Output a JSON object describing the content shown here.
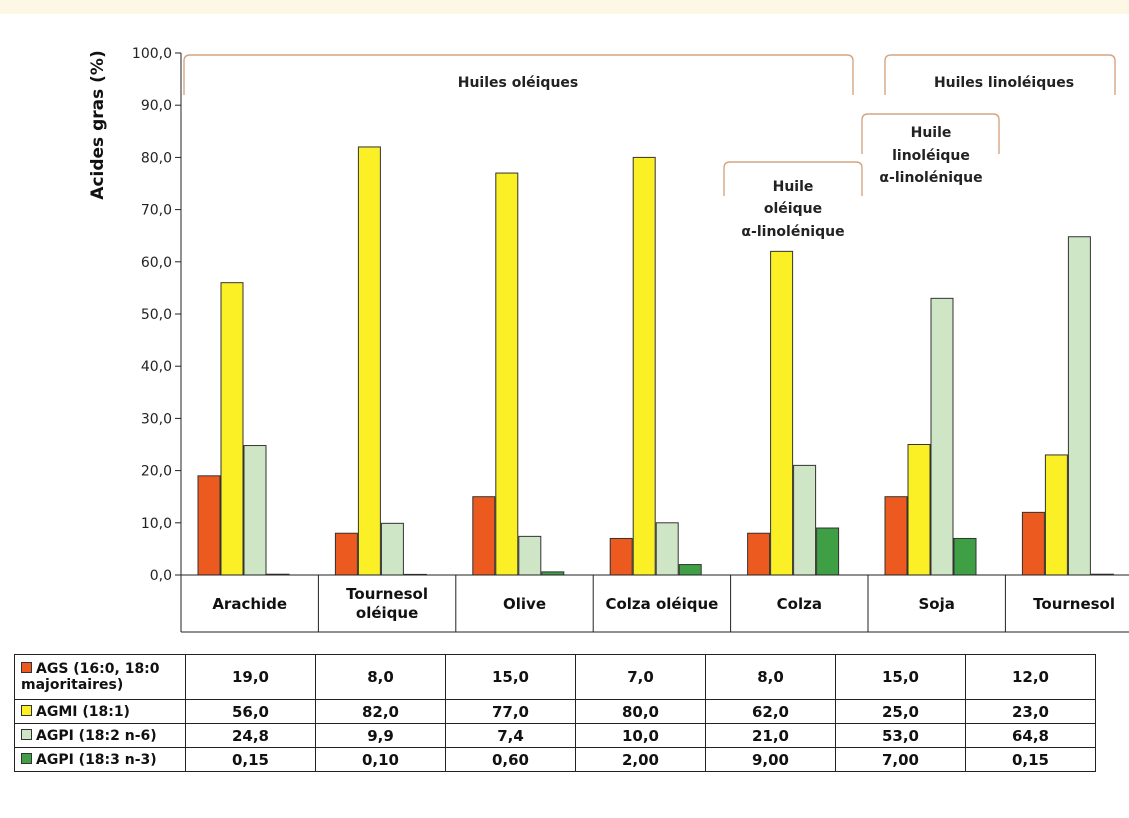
{
  "chart_data": {
    "type": "bar",
    "ylabel": "Acides gras (%)",
    "ylim": [
      0,
      100
    ],
    "yticks": [
      "0,0",
      "10,0",
      "20,0",
      "30,0",
      "40,0",
      "50,0",
      "60,0",
      "70,0",
      "80,0",
      "90,0",
      "100,0"
    ],
    "categories": [
      "Arachide",
      "Tournesol oléique",
      "Olive",
      "Colza oléique",
      "Colza",
      "Soja",
      "Tournesol"
    ],
    "series": [
      {
        "name": "AGS (16:0, 18:0 majoritaires)",
        "color": "#ed5a1f",
        "values": [
          19.0,
          8.0,
          15.0,
          7.0,
          8.0,
          15.0,
          12.0
        ],
        "labels": [
          "19,0",
          "8,0",
          "15,0",
          "7,0",
          "8,0",
          "15,0",
          "12,0"
        ]
      },
      {
        "name": "AGMI (18:1)",
        "color": "#fbef26",
        "values": [
          56.0,
          82.0,
          77.0,
          80.0,
          62.0,
          25.0,
          23.0
        ],
        "labels": [
          "56,0",
          "82,0",
          "77,0",
          "80,0",
          "62,0",
          "25,0",
          "23,0"
        ]
      },
      {
        "name": "AGPI (18:2 n-6)",
        "color": "#cfe6c6",
        "values": [
          24.8,
          9.9,
          7.4,
          10.0,
          21.0,
          53.0,
          64.8
        ],
        "labels": [
          "24,8",
          "9,9",
          "7,4",
          "10,0",
          "21,0",
          "53,0",
          "64,8"
        ]
      },
      {
        "name": "AGPI (18:3 n-3)",
        "color": "#3f9f44",
        "values": [
          0.15,
          0.1,
          0.6,
          2.0,
          9.0,
          7.0,
          0.15
        ],
        "labels": [
          "0,15",
          "0,10",
          "0,60",
          "2,00",
          "9,00",
          "7,00",
          "0,15"
        ]
      }
    ],
    "groups": [
      {
        "label": "Huiles oléiques",
        "categories": [
          "Arachide",
          "Tournesol oléique",
          "Olive",
          "Colza oléique",
          "Colza"
        ]
      },
      {
        "label": "Huiles linoléiques",
        "categories": [
          "Soja",
          "Tournesol"
        ]
      },
      {
        "label": "Huile oléique α-linolénique",
        "categories": [
          "Colza"
        ]
      },
      {
        "label": "Huile linoléique α-linolénique",
        "categories": [
          "Soja"
        ]
      }
    ],
    "table": {
      "row_headers": [
        "AGS (16:0, 18:0 majoritaires)",
        "AGMI (18:1)",
        "AGPI (18:2 n-6)",
        "AGPI (18:3 n-3)"
      ]
    }
  }
}
